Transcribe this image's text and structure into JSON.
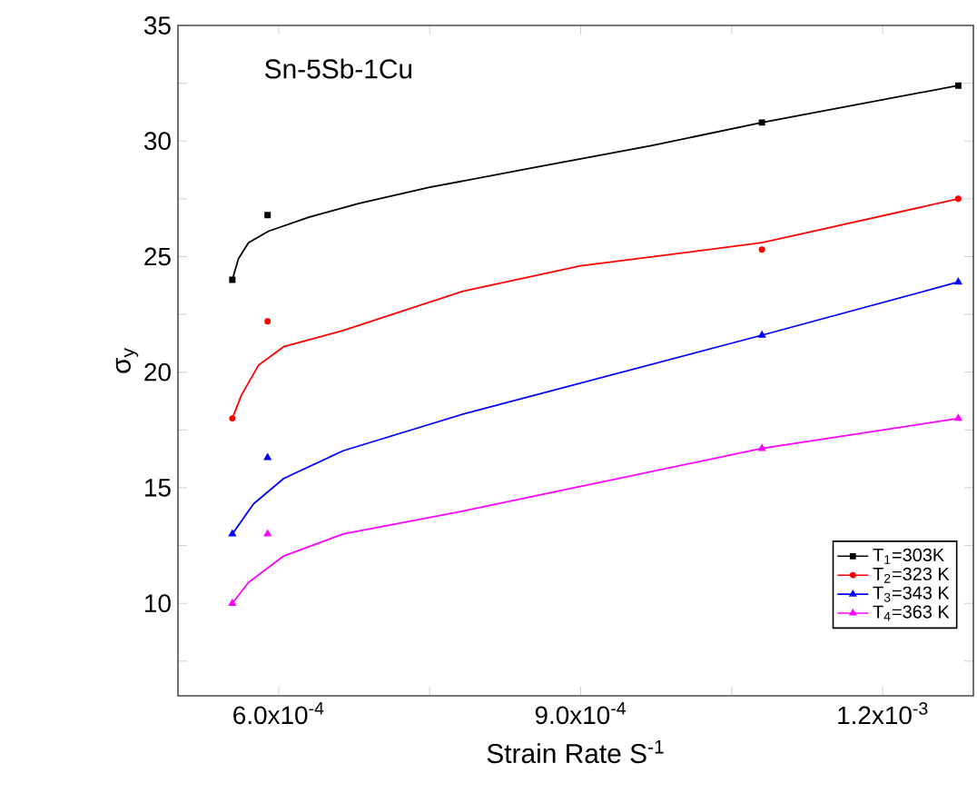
{
  "chart_data": {
    "type": "scatter",
    "xlabel": "Strain Rate S$^{-1}$",
    "ylabel": "σ$_{y}$",
    "annotations": [
      "Sn-5Sb-1Cu"
    ],
    "xlim": [
      0.0005,
      0.00129
    ],
    "ylim": [
      6,
      35
    ],
    "xticks": [
      {
        "value": 0.0006,
        "label": "6.0x10$^{-4}$"
      },
      {
        "value": 0.00075,
        "label": null
      },
      {
        "value": 0.0009,
        "label": "9.0x10$^{-4}$"
      },
      {
        "value": 0.00105,
        "label": null
      },
      {
        "value": 0.0012,
        "label": "1.2x10$^{-3}$"
      }
    ],
    "yticks": [
      {
        "value": 7.5,
        "label": null
      },
      10,
      {
        "value": 12.5,
        "label": null
      },
      15,
      {
        "value": 17.5,
        "label": null
      },
      20,
      {
        "value": 22.5,
        "label": null
      },
      25,
      {
        "value": 27.5,
        "label": null
      },
      30,
      {
        "value": 32.5,
        "label": null
      },
      35
    ],
    "legend": "bottom right",
    "series": [
      {
        "type": "line",
        "color": "#000000",
        "marker": "none",
        "x": [
          0.000554,
          0.00056,
          0.00057,
          0.00059,
          0.00063,
          0.00068,
          0.00075,
          0.00086,
          0.00097,
          0.00108,
          0.001275
        ],
        "values": [
          24.0,
          24.9,
          25.6,
          26.1,
          26.7,
          27.3,
          28.0,
          28.9,
          29.8,
          30.8,
          32.4
        ]
      },
      {
        "type": "line",
        "color": "#ff0000",
        "marker": "none",
        "x": [
          0.000554,
          0.000563,
          0.00058,
          0.000605,
          0.000664,
          0.000783,
          0.0009,
          0.00108,
          0.001275
        ],
        "values": [
          18.0,
          19.0,
          20.3,
          21.1,
          21.8,
          23.5,
          24.6,
          25.6,
          27.5
        ]
      },
      {
        "type": "line",
        "color": "#0000ff",
        "marker": "none",
        "x": [
          0.000554,
          0.000575,
          0.000605,
          0.000664,
          0.000784,
          0.00108,
          0.001275
        ],
        "values": [
          13.0,
          14.3,
          15.4,
          16.6,
          18.2,
          21.6,
          23.9
        ]
      },
      {
        "type": "line",
        "color": "#ff00ff",
        "marker": "none",
        "x": [
          0.000554,
          0.00057,
          0.000605,
          0.000664,
          0.000784,
          0.00108,
          0.001275
        ],
        "values": [
          10.0,
          10.9,
          12.05,
          13.0,
          14.0,
          16.7,
          18.0
        ]
      },
      {
        "name": "T$_{1}$=303K",
        "color": "#000000",
        "marker": "square",
        "x": [
          0.000554,
          0.000589,
          0.00108,
          0.001275
        ],
        "values": [
          24.0,
          26.8,
          30.8,
          32.4
        ]
      },
      {
        "name": "T$_{2}$=323 K",
        "color": "#ff0000",
        "marker": "circle",
        "x": [
          0.000554,
          0.000589,
          0.00108,
          0.001275
        ],
        "values": [
          18.0,
          22.2,
          25.3,
          27.5
        ]
      },
      {
        "name": "T$_{3}$=343 K",
        "color": "#0000ff",
        "marker": "triangle",
        "x": [
          0.000554,
          0.000589,
          0.00108,
          0.001275
        ],
        "values": [
          13.0,
          16.3,
          21.6,
          23.9
        ]
      },
      {
        "name": "T$_{4}$=363 K",
        "color": "#ff00ff",
        "marker": "triangle",
        "x": [
          0.000554,
          0.000589,
          0.00108,
          0.001275
        ],
        "values": [
          10.0,
          13.0,
          16.7,
          18.0
        ]
      }
    ]
  }
}
